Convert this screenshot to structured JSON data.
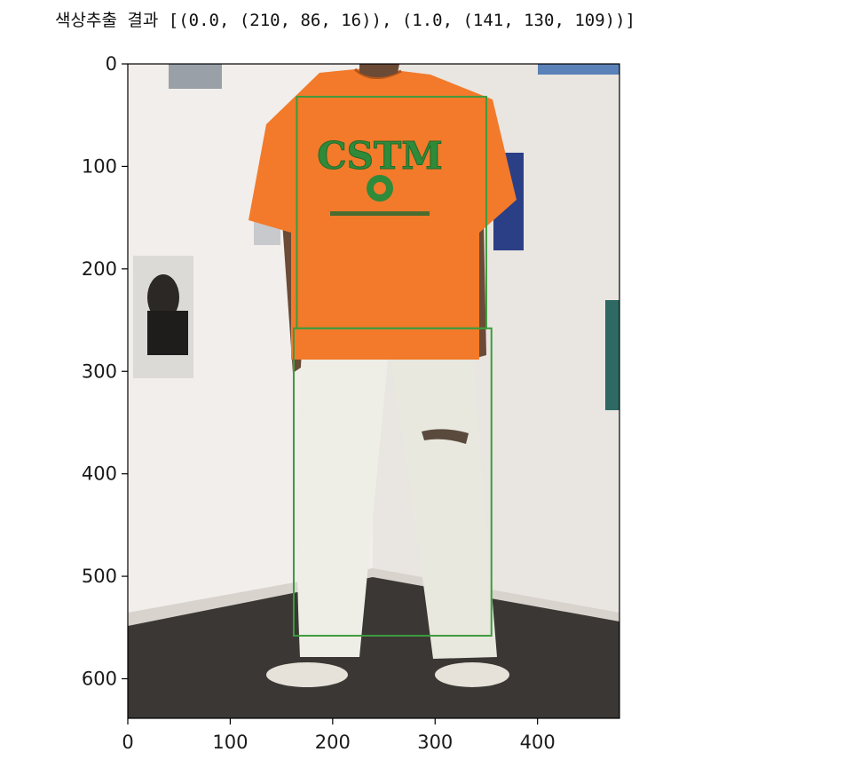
{
  "output": {
    "text": "색상추출 결과 [(0.0, (210, 86, 16)), (1.0, (141, 130, 109))]"
  },
  "figure": {
    "x_ticks": [
      "0",
      "100",
      "200",
      "300",
      "400"
    ],
    "y_ticks": [
      "0",
      "100",
      "200",
      "300",
      "400",
      "500",
      "600"
    ],
    "colors": {
      "box": "#3e9b3e",
      "shirt": "#f27a2a",
      "pants": "#eeeee6",
      "wall": "#ede9e5",
      "floor": "#3a3734",
      "logo": "#2f8a3a"
    }
  },
  "chart_data": {
    "type": "image",
    "xlim": [
      0,
      480
    ],
    "ylim": [
      640,
      0
    ],
    "boxes": [
      {
        "x0": 165,
        "y0": 32,
        "x1": 350,
        "y1": 258
      },
      {
        "x0": 162,
        "y0": 258,
        "x1": 355,
        "y1": 558
      }
    ]
  }
}
